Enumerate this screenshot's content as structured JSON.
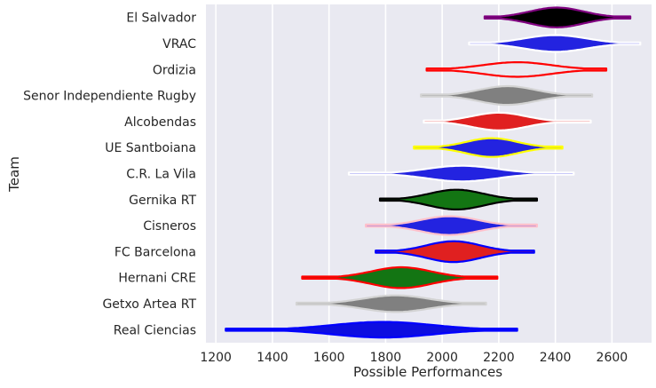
{
  "chart_data": {
    "type": "violin",
    "xlabel": "Possible Performances",
    "ylabel": "Team",
    "xlim": [
      1165,
      2740
    ],
    "xticks": [
      1200,
      1400,
      1600,
      1800,
      2000,
      2200,
      2400,
      2600
    ],
    "grid": true,
    "background": "#e9e9f1",
    "grid_color": "#ffffff",
    "teams": [
      {
        "name": "El Salvador",
        "fill": "#000000",
        "edge": "#800080",
        "min": 2150,
        "max": 2665,
        "center": 2405,
        "half_width": 0.38,
        "spread": 95
      },
      {
        "name": "VRAC",
        "fill": "#2323e0",
        "edge": "#ffffff",
        "min": 2095,
        "max": 2700,
        "center": 2400,
        "half_width": 0.32,
        "spread": 110
      },
      {
        "name": "Ordizia",
        "fill": "#e9e9f1",
        "edge": "#ff0000",
        "min": 1945,
        "max": 2580,
        "center": 2265,
        "half_width": 0.28,
        "spread": 120
      },
      {
        "name": "Senor Independiente Rugby",
        "fill": "#808080",
        "edge": "#d3d3d3",
        "min": 1925,
        "max": 2530,
        "center": 2230,
        "half_width": 0.36,
        "spread": 100
      },
      {
        "name": "Alcobendas",
        "fill": "#e02020",
        "edge": "#ffffff",
        "min": 1935,
        "max": 2525,
        "center": 2200,
        "half_width": 0.34,
        "spread": 95
      },
      {
        "name": "UE Santboiana",
        "fill": "#2323e0",
        "edge": "#ffff00",
        "min": 1900,
        "max": 2425,
        "center": 2175,
        "half_width": 0.36,
        "spread": 90
      },
      {
        "name": "C.R. La Vila",
        "fill": "#2323e0",
        "edge": "#ffffff",
        "min": 1670,
        "max": 2465,
        "center": 2070,
        "half_width": 0.3,
        "spread": 125
      },
      {
        "name": "Gernika RT",
        "fill": "#137513",
        "edge": "#000000",
        "min": 1780,
        "max": 2335,
        "center": 2050,
        "half_width": 0.38,
        "spread": 95
      },
      {
        "name": "Cisneros",
        "fill": "#2323e0",
        "edge": "#ffc0cb",
        "min": 1730,
        "max": 2335,
        "center": 2025,
        "half_width": 0.36,
        "spread": 100
      },
      {
        "name": "FC Barcelona",
        "fill": "#e02020",
        "edge": "#0000ff",
        "min": 1765,
        "max": 2325,
        "center": 2040,
        "half_width": 0.4,
        "spread": 95
      },
      {
        "name": "Hernani CRE",
        "fill": "#137513",
        "edge": "#ff0000",
        "min": 1505,
        "max": 2195,
        "center": 1855,
        "half_width": 0.4,
        "spread": 105
      },
      {
        "name": "Getxo Artea RT",
        "fill": "#808080",
        "edge": "#d3d3d3",
        "min": 1485,
        "max": 2155,
        "center": 1835,
        "half_width": 0.32,
        "spread": 115
      },
      {
        "name": "Real Ciencias",
        "fill": "#0d0de0",
        "edge": "#0000ff",
        "min": 1235,
        "max": 2265,
        "center": 1790,
        "half_width": 0.3,
        "spread": 175
      }
    ]
  }
}
